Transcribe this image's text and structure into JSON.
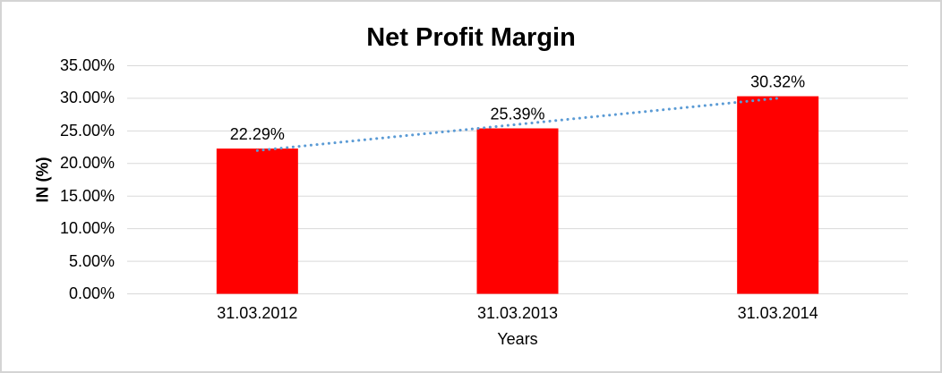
{
  "chart_data": {
    "type": "bar",
    "title": "Net Profit Margin",
    "xlabel": "Years",
    "ylabel": "IN (%)",
    "categories": [
      "31.03.2012",
      "31.03.2013",
      "31.03.2014"
    ],
    "values": [
      22.29,
      25.39,
      30.32
    ],
    "data_labels": [
      "22.29%",
      "25.39%",
      "30.32%"
    ],
    "y_ticks": [
      "35.00%",
      "30.00%",
      "25.00%",
      "20.00%",
      "15.00%",
      "10.00%",
      "5.00%",
      "0.00%"
    ],
    "ylim": [
      0,
      35
    ],
    "y_tick_step": 5,
    "grid": true,
    "legend_position": "none",
    "trendline": {
      "type": "linear",
      "style": "dotted"
    },
    "colors": {
      "bar": "#FF0000",
      "trendline": "#5B9BD5",
      "gridline": "#D9D9D9",
      "text": "#000000",
      "frame_border": "#D4D4D4",
      "background": "#FFFFFF"
    }
  }
}
